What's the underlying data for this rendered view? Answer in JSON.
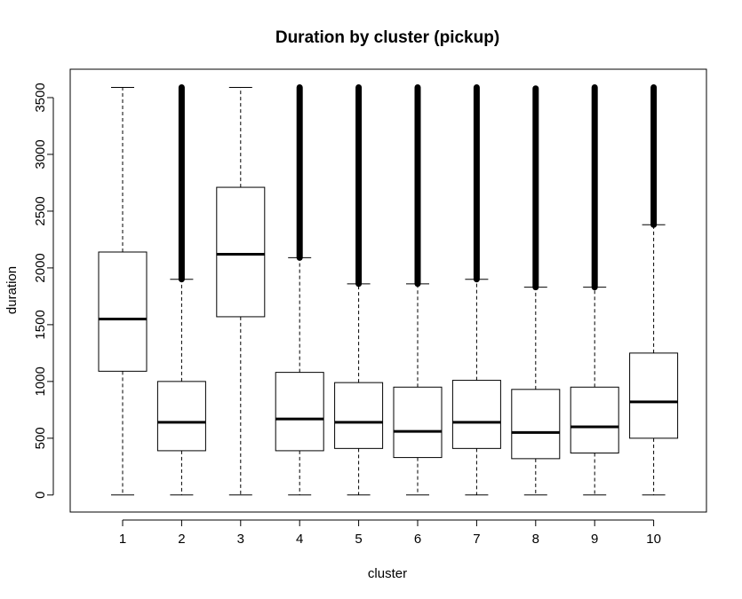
{
  "chart_data": {
    "type": "boxplot",
    "title": "Duration by cluster (pickup)",
    "xlabel": "cluster",
    "ylabel": "duration",
    "ylim": [
      -150,
      3750
    ],
    "yticks": [
      0,
      500,
      1000,
      1500,
      2000,
      2500,
      3000,
      3500
    ],
    "categories": [
      "1",
      "2",
      "3",
      "4",
      "5",
      "6",
      "7",
      "8",
      "9",
      "10"
    ],
    "boxes": [
      {
        "category": "1",
        "whisker_low": 0,
        "q1": 1090,
        "median": 1550,
        "q3": 2140,
        "whisker_high": 3590,
        "outliers_from": null,
        "outliers_to": null
      },
      {
        "category": "2",
        "whisker_low": 0,
        "q1": 390,
        "median": 640,
        "q3": 1000,
        "whisker_high": 1900,
        "outliers_from": 1900,
        "outliers_to": 3590
      },
      {
        "category": "3",
        "whisker_low": 0,
        "q1": 1570,
        "median": 2120,
        "q3": 2710,
        "whisker_high": 3590,
        "outliers_from": null,
        "outliers_to": null
      },
      {
        "category": "4",
        "whisker_low": 0,
        "q1": 390,
        "median": 670,
        "q3": 1080,
        "whisker_high": 2090,
        "outliers_from": 2090,
        "outliers_to": 3590
      },
      {
        "category": "5",
        "whisker_low": 0,
        "q1": 410,
        "median": 640,
        "q3": 990,
        "whisker_high": 1860,
        "outliers_from": 1860,
        "outliers_to": 3590
      },
      {
        "category": "6",
        "whisker_low": 0,
        "q1": 330,
        "median": 560,
        "q3": 950,
        "whisker_high": 1860,
        "outliers_from": 1860,
        "outliers_to": 3590
      },
      {
        "category": "7",
        "whisker_low": 0,
        "q1": 410,
        "median": 640,
        "q3": 1010,
        "whisker_high": 1900,
        "outliers_from": 1900,
        "outliers_to": 3590
      },
      {
        "category": "8",
        "whisker_low": 0,
        "q1": 320,
        "median": 550,
        "q3": 930,
        "whisker_high": 1830,
        "outliers_from": 1830,
        "outliers_to": 3580
      },
      {
        "category": "9",
        "whisker_low": 0,
        "q1": 370,
        "median": 600,
        "q3": 950,
        "whisker_high": 1830,
        "outliers_from": 1830,
        "outliers_to": 3590
      },
      {
        "category": "10",
        "whisker_low": 0,
        "q1": 500,
        "median": 820,
        "q3": 1250,
        "whisker_high": 2380,
        "outliers_from": 2380,
        "outliers_to": 3590
      }
    ]
  }
}
